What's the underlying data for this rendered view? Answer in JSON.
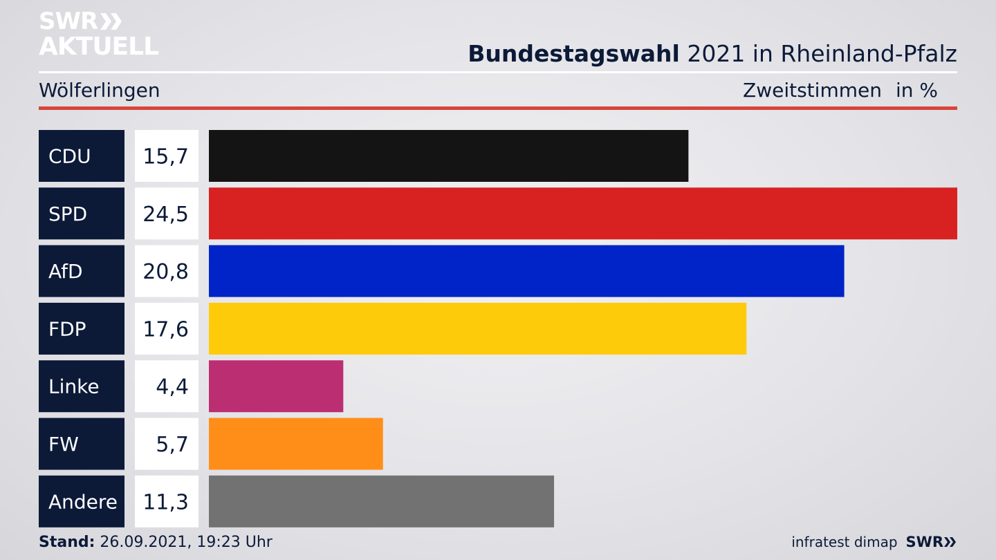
{
  "header": {
    "logo_line1": "SWR",
    "logo_line2": "AKTUELL",
    "title_bold": "Bundestagswahl",
    "title_rest": " 2021 in Rheinland-Pfalz",
    "subtitle": "Wölferlingen",
    "measure": "Zweitstimmen",
    "unit": "in %"
  },
  "chart_data": {
    "type": "bar",
    "orientation": "horizontal",
    "categories": [
      "CDU",
      "SPD",
      "AfD",
      "FDP",
      "Linke",
      "FW",
      "Andere"
    ],
    "values": [
      15.7,
      24.5,
      20.8,
      17.6,
      4.4,
      5.7,
      11.3
    ],
    "value_labels": [
      "15,7",
      "24,5",
      "20,8",
      "17,6",
      "4,4",
      "5,7",
      "11,3"
    ],
    "colors": [
      "#141414",
      "#d82222",
      "#0124c8",
      "#fecb0a",
      "#bc2e72",
      "#ff8e19",
      "#727272"
    ],
    "xlim": [
      0,
      24.5
    ],
    "grid": false,
    "legend": "none"
  },
  "footer": {
    "stand_label": "Stand:",
    "stand_value": " 26.09.2021, 19:23 Uhr",
    "source": "infratest dimap",
    "brand": "SWR"
  },
  "theme": {
    "label_bg": "#0c1a38",
    "value_bg": "#ffffff",
    "text": "#0c1a38",
    "accent_red": "#d6453b"
  }
}
